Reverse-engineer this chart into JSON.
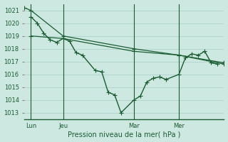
{
  "background_color": "#cce8e0",
  "plot_bg_color": "#cce8e0",
  "grid_color": "#a8cfc8",
  "line_color": "#1a5c32",
  "title": "Pression niveau de la mer( hPa )",
  "yticks": [
    1013,
    1014,
    1015,
    1016,
    1017,
    1018,
    1019,
    1020,
    1021
  ],
  "ylim": [
    1012.5,
    1021.5
  ],
  "xtick_labels": [
    "Lun",
    "Jeu",
    "Mar",
    "Mer"
  ],
  "xtick_positions": [
    1,
    6,
    17,
    24
  ],
  "vline_positions": [
    1,
    6,
    17,
    24
  ],
  "xlim": [
    0,
    31
  ],
  "series1_x": [
    1,
    2,
    3,
    4,
    5,
    6,
    7,
    8,
    9,
    11,
    12,
    13,
    14,
    15,
    17,
    18,
    19,
    20,
    21,
    22,
    24,
    25,
    26,
    27,
    28,
    29,
    30
  ],
  "series1_y": [
    1020.5,
    1020.0,
    1019.2,
    1018.7,
    1018.5,
    1018.8,
    1018.6,
    1017.7,
    1017.5,
    1016.3,
    1016.2,
    1014.6,
    1014.4,
    1013.0,
    1014.0,
    1014.3,
    1015.4,
    1015.7,
    1015.8,
    1015.6,
    1016.0,
    1017.3,
    1017.6,
    1017.5,
    1017.8,
    1016.9,
    1016.8
  ],
  "series2_x": [
    0,
    1,
    6,
    17,
    24,
    31
  ],
  "series2_y": [
    1021.2,
    1021.0,
    1019.0,
    1018.0,
    1017.5,
    1016.9
  ],
  "series3_x": [
    1,
    6,
    17,
    24,
    31
  ],
  "series3_y": [
    1019.0,
    1018.8,
    1017.8,
    1017.5,
    1016.8
  ],
  "marker": "+",
  "marker_size": 4,
  "linewidth_series1": 1.0,
  "linewidth_series2": 0.9,
  "linewidth_series3": 0.9,
  "title_fontsize": 7,
  "tick_fontsize": 6
}
